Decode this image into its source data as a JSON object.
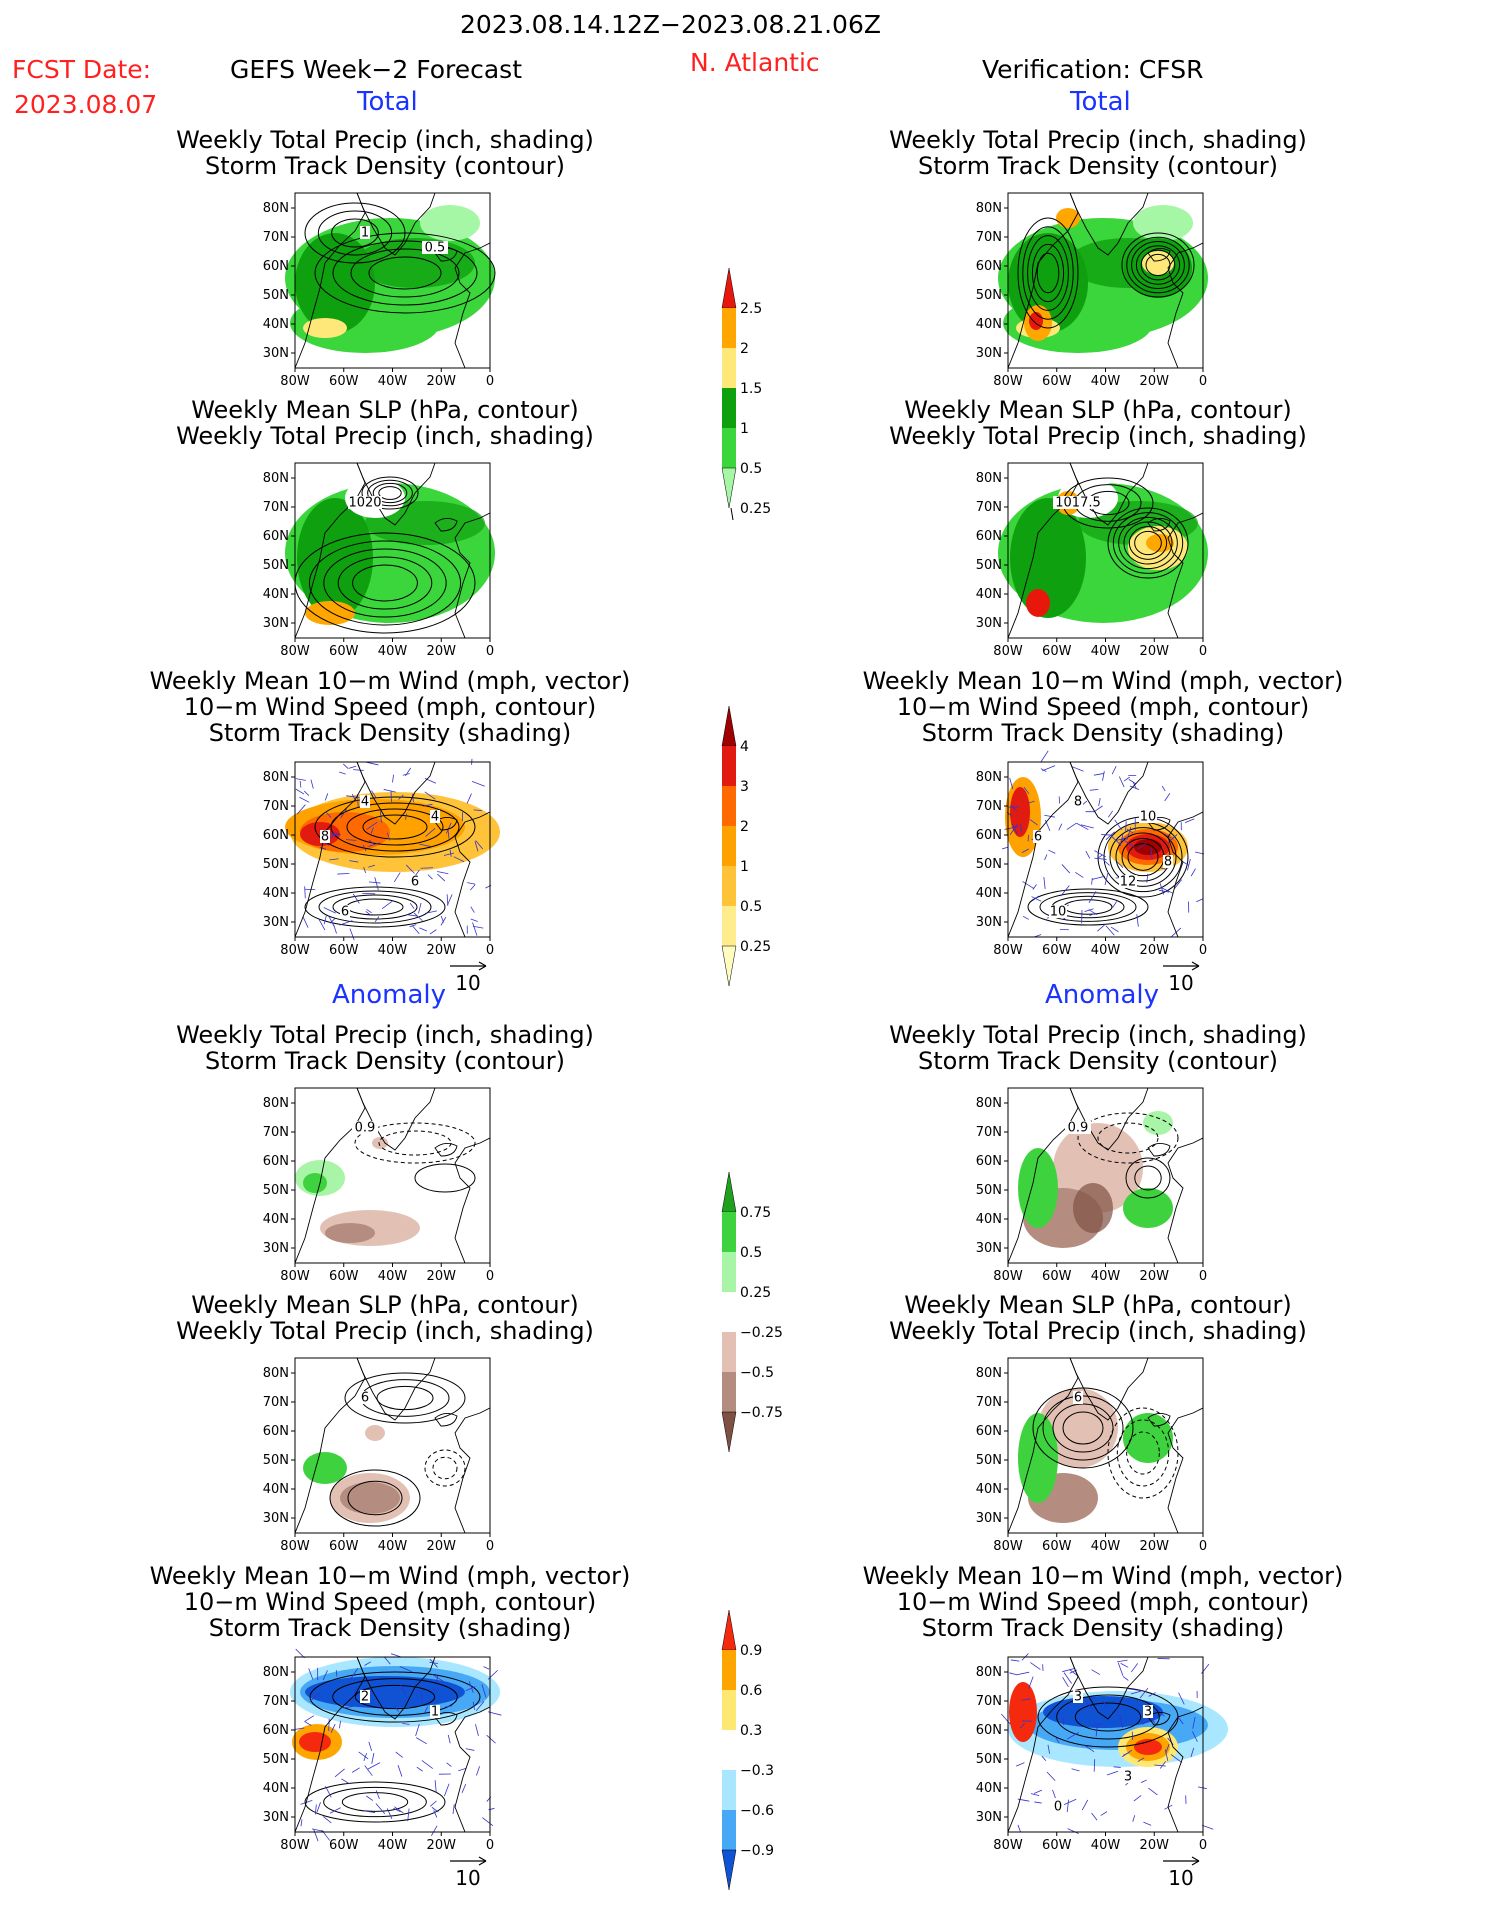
{
  "header": {
    "date_range": "2023.08.14.12Z−2023.08.21.06Z",
    "fcst_label": "FCST Date:",
    "fcst_date": "2023.08.07",
    "left_title": "GEFS Week−2 Forecast",
    "region": "N. Atlantic",
    "right_title": "Verification: CFSR"
  },
  "sections": {
    "total": "Total",
    "anomaly": "Anomaly"
  },
  "panel_titles": {
    "precip_track": [
      "Weekly Total Precip (inch, shading)",
      "Storm Track Density (contour)"
    ],
    "slp_precip": [
      "Weekly Mean SLP (hPa, contour)",
      "Weekly Total Precip (inch, shading)"
    ],
    "wind_track": [
      "Weekly Mean 10−m Wind (mph, vector)",
      "10−m Wind Speed (mph, contour)",
      "Storm Track Density (shading)"
    ]
  },
  "axes": {
    "lat_ticks": [
      "80N",
      "70N",
      "60N",
      "50N",
      "40N",
      "30N"
    ],
    "lon_ticks": [
      "80W",
      "60W",
      "40W",
      "20W",
      "0"
    ]
  },
  "vector_reference": "10",
  "contour_labels": {
    "gefs_total_track": [
      "1",
      "0.5"
    ],
    "cfsr_total_slp": [
      "1017.5"
    ],
    "gefs_total_slp": [
      "1020"
    ],
    "gefs_total_wind": [
      "4",
      "4",
      "6",
      "6",
      "8"
    ],
    "cfsr_total_wind": [
      "8",
      "10",
      "10",
      "12",
      "6",
      "8"
    ],
    "gefs_anom_track": [
      "0.9"
    ],
    "cfsr_anom_track": [
      "0.9"
    ],
    "gefs_anom_slp": [
      "6"
    ],
    "cfsr_anom_slp": [
      "6"
    ],
    "gefs_anom_wind": [
      "2",
      "1"
    ],
    "cfsr_anom_wind": [
      "3",
      "3",
      "0",
      "3"
    ]
  },
  "colorbars": {
    "precip_total": {
      "labels": [
        "2.5",
        "2",
        "1.5",
        "1",
        "0.5",
        "0.25"
      ],
      "colors": [
        "#e8170c",
        "#ffa700",
        "#ffe87a",
        "#0fa00f",
        "#3bd63b",
        "#a5f7a5"
      ]
    },
    "track_total": {
      "labels": [
        "4",
        "3",
        "2",
        "1",
        "0.5",
        "0.25"
      ],
      "colors": [
        "#a00000",
        "#e11b0f",
        "#ff6a00",
        "#ffa200",
        "#ffc33a",
        "#ffec8d",
        "#fffcc0"
      ]
    },
    "precip_anom": {
      "labels": [
        "0.75",
        "0.5",
        "0.25",
        "−0.25",
        "−0.5",
        "−0.75"
      ],
      "colors": [
        "#1fa11f",
        "#3fd23f",
        "#a8f5a8",
        "#ffffff",
        "#e2c1b4",
        "#b48d80",
        "#7f5143"
      ]
    },
    "track_anom": {
      "labels": [
        "0.9",
        "0.6",
        "0.3",
        "−0.3",
        "−0.6",
        "−0.9"
      ],
      "colors": [
        "#f5290e",
        "#ffa500",
        "#ffe872",
        "#ffffff",
        "#a8e7ff",
        "#47a9f5",
        "#1052d4"
      ]
    }
  }
}
